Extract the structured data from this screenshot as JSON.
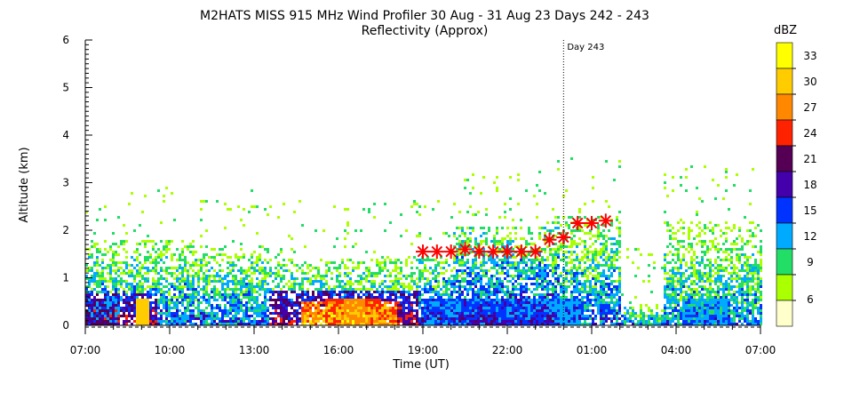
{
  "chart_data": {
    "type": "heatmap",
    "title": "M2HATS MISS 915 MHz Wind Profiler  30 Aug - 31 Aug 23 Days 242 - 243",
    "subtitle": "Reflectivity (Approx)",
    "xlabel": "Time (UT)",
    "ylabel": "Altitude (km)",
    "x_ticks": [
      "07:00",
      "10:00",
      "13:00",
      "16:00",
      "19:00",
      "22:00",
      "01:00",
      "04:00",
      "07:00"
    ],
    "x_range_hours_elapsed": [
      0,
      24
    ],
    "y_ticks": [
      "0",
      "1",
      "2",
      "3",
      "4",
      "5",
      "6"
    ],
    "ylim": [
      0,
      6
    ],
    "grid": false,
    "day_marker": {
      "label": "Day 243",
      "hour": 17.0
    },
    "colorbar": {
      "title": "dBZ",
      "labels": [
        "33",
        "30",
        "27",
        "24",
        "21",
        "18",
        "15",
        "12",
        "9",
        "6"
      ],
      "colors": [
        "#ffff00",
        "#ffcc00",
        "#ff8800",
        "#ff2200",
        "#550055",
        "#4400aa",
        "#0033ff",
        "#00aaff",
        "#22dd66",
        "#aaff00",
        "#ffffcc"
      ]
    },
    "bl_markers": {
      "label": "boundary layer height",
      "color": "#ff0000",
      "points": [
        {
          "h": 12.0,
          "alt": 1.55
        },
        {
          "h": 12.5,
          "alt": 1.55
        },
        {
          "h": 13.0,
          "alt": 1.55
        },
        {
          "h": 13.5,
          "alt": 1.6
        },
        {
          "h": 14.0,
          "alt": 1.55
        },
        {
          "h": 14.5,
          "alt": 1.55
        },
        {
          "h": 15.0,
          "alt": 1.55
        },
        {
          "h": 15.5,
          "alt": 1.55
        },
        {
          "h": 16.0,
          "alt": 1.55
        },
        {
          "h": 16.5,
          "alt": 1.8
        },
        {
          "h": 17.0,
          "alt": 1.85
        },
        {
          "h": 17.5,
          "alt": 2.15
        },
        {
          "h": 18.0,
          "alt": 2.15
        },
        {
          "h": 18.5,
          "alt": 2.2
        }
      ]
    }
  }
}
